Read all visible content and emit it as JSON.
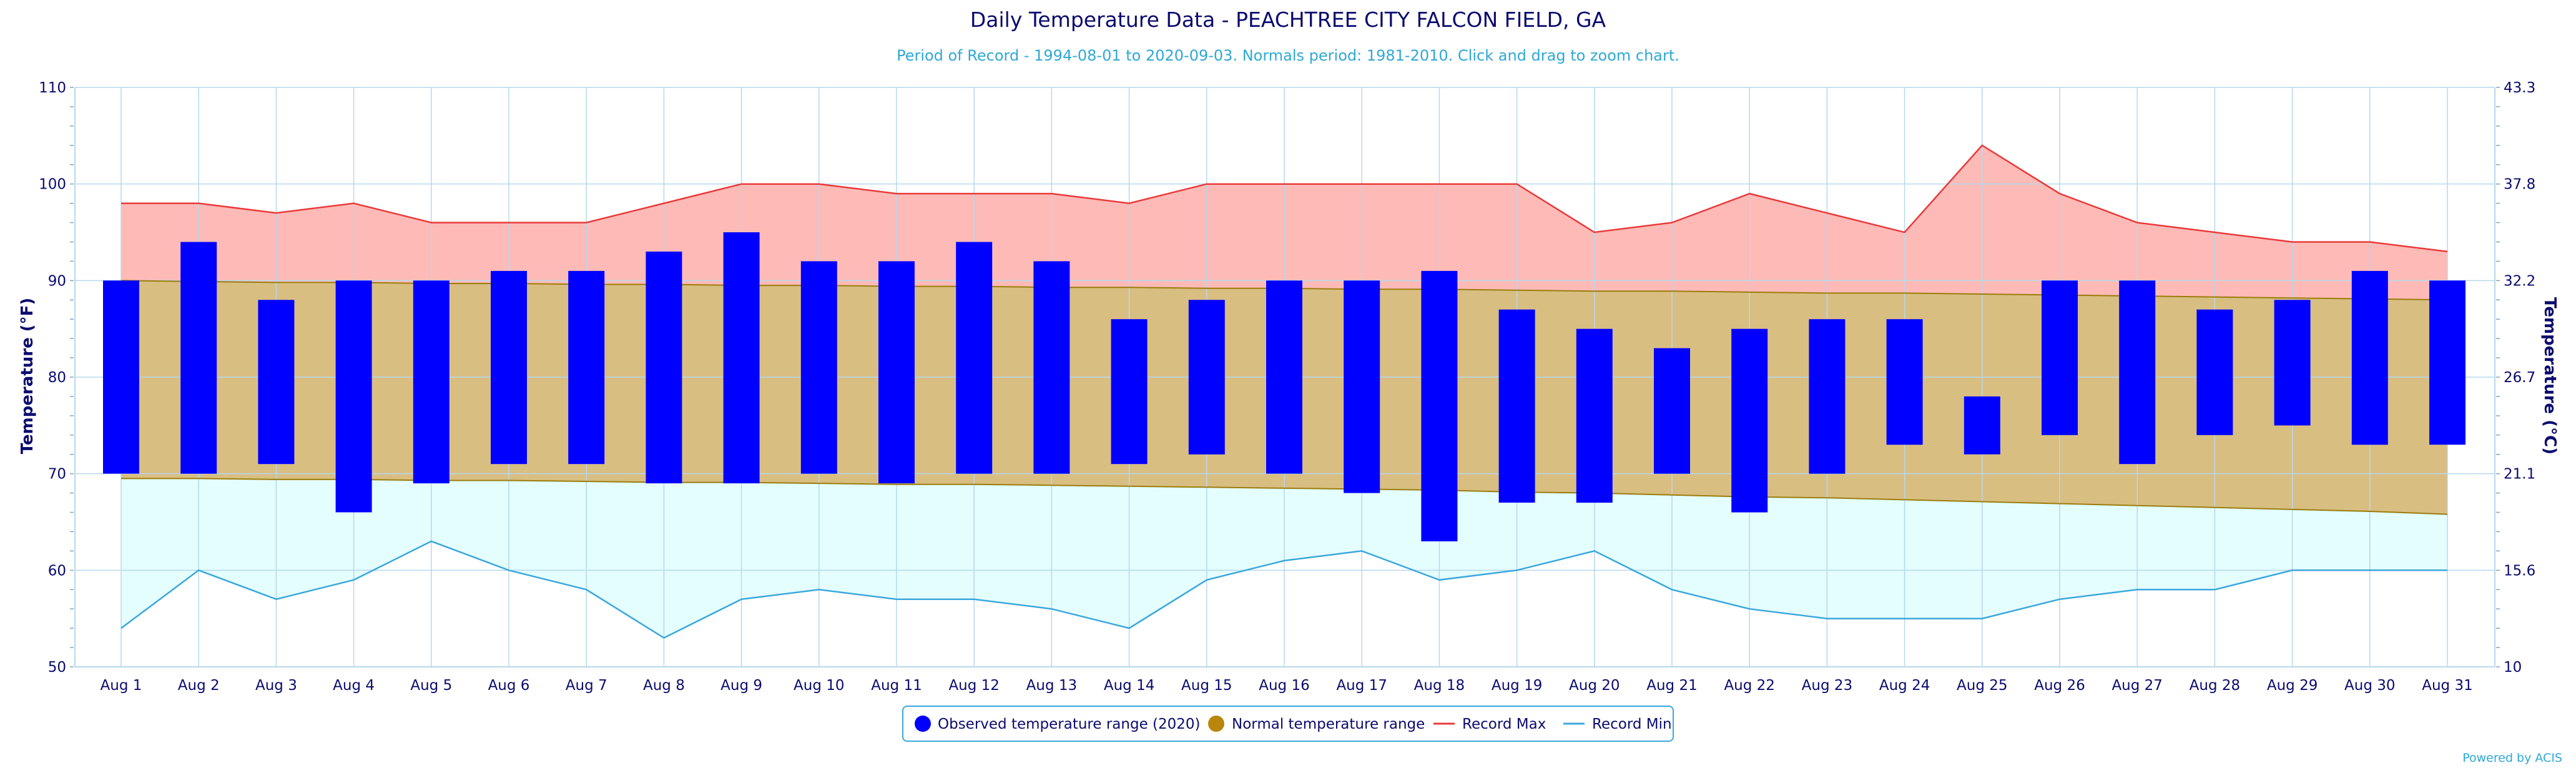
{
  "chart_data": {
    "type": "bar",
    "title": "Daily Temperature Data - PEACHTREE CITY FALCON FIELD, GA",
    "subtitle": "Period of Record - 1994-08-01 to 2020-09-03. Normals period: 1981-2010. Click and drag to zoom chart.",
    "ylabel": "Temperature (°F)",
    "ylabel_right": "Temperature (°C)",
    "ylim": [
      50,
      110
    ],
    "y_ticks": [
      "50",
      "60",
      "70",
      "80",
      "90",
      "100",
      "110"
    ],
    "y_ticks_right": [
      "10",
      "15.6",
      "21.1",
      "26.7",
      "32.2",
      "37.8",
      "43.3"
    ],
    "categories": [
      "Aug 1",
      "Aug 2",
      "Aug 3",
      "Aug 4",
      "Aug 5",
      "Aug 6",
      "Aug 7",
      "Aug 8",
      "Aug 9",
      "Aug 10",
      "Aug 11",
      "Aug 12",
      "Aug 13",
      "Aug 14",
      "Aug 15",
      "Aug 16",
      "Aug 17",
      "Aug 18",
      "Aug 19",
      "Aug 20",
      "Aug 21",
      "Aug 22",
      "Aug 23",
      "Aug 24",
      "Aug 25",
      "Aug 26",
      "Aug 27",
      "Aug 28",
      "Aug 29",
      "Aug 30",
      "Aug 31"
    ],
    "series": [
      {
        "name": "Observed temperature range (2020)",
        "type": "columnrange",
        "low": [
          70,
          70,
          71,
          66,
          69,
          71,
          71,
          69,
          69,
          70,
          69,
          70,
          70,
          71,
          72,
          70,
          68,
          63,
          67,
          67,
          70,
          66,
          70,
          73,
          72,
          74,
          71,
          74,
          75,
          73,
          73
        ],
        "high": [
          90,
          94,
          88,
          90,
          90,
          91,
          91,
          93,
          95,
          92,
          92,
          94,
          92,
          86,
          88,
          90,
          90,
          91,
          87,
          85,
          83,
          85,
          86,
          86,
          78,
          90,
          90,
          87,
          88,
          91,
          90
        ]
      },
      {
        "name": "Normal temperature range",
        "type": "arearange",
        "low": [
          69.5,
          69.5,
          69.4,
          69.4,
          69.3,
          69.3,
          69.2,
          69.1,
          69.1,
          69.0,
          68.9,
          68.9,
          68.8,
          68.7,
          68.6,
          68.5,
          68.4,
          68.3,
          68.1,
          68.0,
          67.8,
          67.6,
          67.5,
          67.3,
          67.1,
          66.9,
          66.7,
          66.5,
          66.3,
          66.1,
          65.8
        ],
        "high": [
          90.0,
          89.9,
          89.8,
          89.8,
          89.7,
          89.7,
          89.6,
          89.6,
          89.5,
          89.5,
          89.4,
          89.4,
          89.3,
          89.3,
          89.2,
          89.2,
          89.1,
          89.1,
          89.0,
          88.9,
          88.9,
          88.8,
          88.7,
          88.7,
          88.6,
          88.5,
          88.4,
          88.3,
          88.2,
          88.1,
          88.0
        ]
      },
      {
        "name": "Record Max",
        "type": "line",
        "values": [
          98,
          98,
          97,
          98,
          96,
          96,
          96,
          98,
          100,
          100,
          99,
          99,
          99,
          98,
          100,
          100,
          100,
          100,
          100,
          95,
          96,
          99,
          97,
          95,
          104,
          99,
          96,
          95,
          94,
          94,
          93
        ]
      },
      {
        "name": "Record Min",
        "type": "line",
        "values": [
          54,
          60,
          57,
          59,
          63,
          60,
          58,
          53,
          57,
          58,
          57,
          57,
          56,
          54,
          59,
          61,
          62,
          59,
          60,
          62,
          58,
          56,
          55,
          55,
          55,
          57,
          58,
          58,
          60,
          60,
          60
        ]
      }
    ],
    "colors": {
      "observed": "#0000ff",
      "normal_fill": "#d9be82",
      "normal_marker": "#b8860b",
      "normal_line": "#9a7d0a",
      "record_max_line": "#e8393a",
      "record_max_fill": "#fdbab6",
      "record_min_line": "#3aa7dd",
      "record_min_fill": "#e4fdfd",
      "grid": "#b6d8ee",
      "axis_text": "#0b0b6e"
    },
    "grid": true,
    "legend_position": "bottom-center",
    "credit": "Powered by ACIS"
  }
}
